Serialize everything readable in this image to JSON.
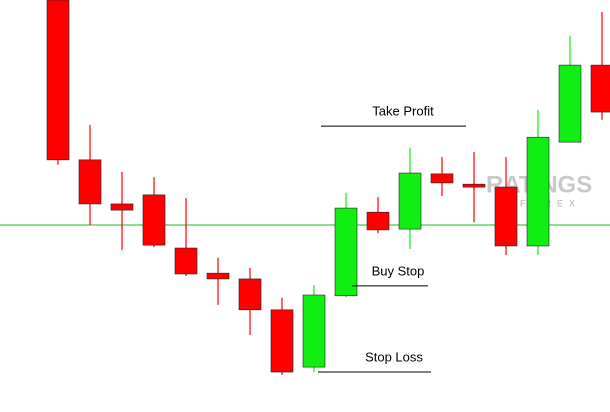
{
  "chart_data": {
    "type": "candlestick",
    "up_color": "#11ee11",
    "down_color": "#ff0000",
    "ylim": [
      0,
      100
    ],
    "open": [
      100,
      61.2,
      50.5,
      52.7,
      39.8,
      33.7,
      32.3,
      24.8,
      10.9,
      28.2,
      48.5,
      44.4,
      57.8,
      55.3,
      54.6,
      40.3,
      65.5,
      84.2
    ],
    "high": [
      100,
      69.7,
      58.3,
      57.0,
      51.9,
      37.4,
      35.0,
      27.7,
      30.8,
      53.2,
      52.2,
      64.1,
      61.9,
      63.1,
      61.9,
      73.3,
      91.3,
      97.1
    ],
    "low": [
      60.0,
      45.4,
      39.3,
      40.0,
      33.0,
      26.0,
      18.7,
      9.0,
      9.7,
      27.9,
      43.4,
      39.6,
      52.4,
      46.1,
      38.1,
      38.1,
      65.5,
      70.9
    ],
    "close": [
      61.2,
      50.5,
      49.0,
      40.5,
      33.5,
      32.3,
      24.8,
      9.7,
      28.4,
      49.5,
      44.2,
      58.0,
      55.6,
      54.6,
      40.3,
      66.7,
      84.2,
      72.8
    ],
    "level": 45.4,
    "level_color": "#22bb22",
    "annotations": [
      {
        "text": "Take Profit",
        "value": 69.4
      },
      {
        "text": "Buy Stop",
        "value": 30.6
      },
      {
        "text": "Stop Loss",
        "value": 9.7
      }
    ],
    "watermark": {
      "title": "RATINGS",
      "subtitle": "FOREX"
    }
  }
}
